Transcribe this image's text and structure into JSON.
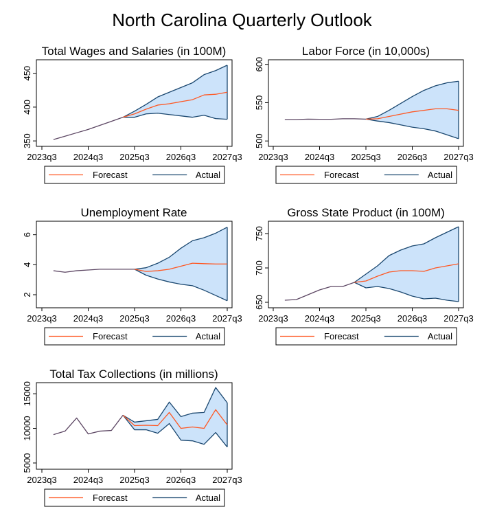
{
  "title": "North Carolina Quarterly Outlook",
  "colors": {
    "band_fill": "#cce3fa",
    "bound_line": "#1a476f",
    "forecast_line": "#ff5722",
    "history_line": "#5b4562"
  },
  "chart_data": [
    {
      "type": "area",
      "title": "Total Wages and Salaries (in 100M)",
      "xlabel": "",
      "ylabel": "",
      "x_ticks": [
        "2023q3",
        "2024q3",
        "2025q3",
        "2026q3",
        "2027q3"
      ],
      "xlim": [
        "2023q3",
        "2027q3"
      ],
      "ylim": [
        342,
        470
      ],
      "y_ticks": [
        350,
        400,
        450
      ],
      "legend": [
        "Forecast",
        "Actual"
      ],
      "history": {
        "x": [
          "2023q4",
          "2024q1",
          "2024q2",
          "2024q3",
          "2024q4",
          "2025q1",
          "2025q2"
        ],
        "y": [
          352,
          357,
          362,
          367,
          373,
          379,
          385
        ]
      },
      "forecast_x": [
        "2025q2",
        "2025q3",
        "2025q4",
        "2026q1",
        "2026q2",
        "2026q3",
        "2026q4",
        "2027q1",
        "2027q2",
        "2027q3"
      ],
      "forecast": [
        385,
        390,
        397,
        403,
        405,
        408,
        411,
        418,
        419,
        422
      ],
      "upper": [
        385,
        394,
        404,
        415,
        422,
        429,
        436,
        448,
        454,
        462
      ],
      "lower": [
        385,
        385,
        390,
        391,
        389,
        387,
        385,
        388,
        383,
        382
      ]
    },
    {
      "type": "area",
      "title": "Labor Force (in 10,000s)",
      "xlabel": "",
      "ylabel": "",
      "x_ticks": [
        "2023q3",
        "2024q3",
        "2025q3",
        "2026q3",
        "2027q3"
      ],
      "xlim": [
        "2023q3",
        "2027q3"
      ],
      "ylim": [
        493,
        606
      ],
      "y_ticks": [
        500,
        550,
        600
      ],
      "legend": [
        "Forecast",
        "Actual"
      ],
      "history": {
        "x": [
          "2023q4",
          "2024q1",
          "2024q2",
          "2024q3",
          "2024q4",
          "2025q1",
          "2025q2",
          "2025q3"
        ],
        "y": [
          528,
          528,
          528.5,
          528.3,
          528.3,
          529,
          529,
          528.5
        ]
      },
      "forecast_x": [
        "2025q3",
        "2025q4",
        "2026q1",
        "2026q2",
        "2026q3",
        "2026q4",
        "2027q1",
        "2027q2",
        "2027q3"
      ],
      "forecast": [
        528.5,
        529,
        532,
        535,
        538,
        540,
        542,
        542,
        540
      ],
      "upper": [
        528.5,
        532,
        540,
        549,
        558,
        566,
        572,
        576,
        578
      ],
      "lower": [
        528.5,
        526,
        524,
        521,
        518,
        516,
        513,
        508,
        503
      ]
    },
    {
      "type": "area",
      "title": "Unemployment Rate",
      "xlabel": "",
      "ylabel": "",
      "x_ticks": [
        "2023q3",
        "2024q3",
        "2025q3",
        "2026q3",
        "2027q3"
      ],
      "xlim": [
        "2023q3",
        "2027q3"
      ],
      "ylim": [
        1.13,
        6.9
      ],
      "y_ticks": [
        2,
        4,
        6
      ],
      "legend": [
        "Forecast",
        "Actual"
      ],
      "history": {
        "x": [
          "2023q4",
          "2024q1",
          "2024q2",
          "2024q3",
          "2024q4",
          "2025q1",
          "2025q2",
          "2025q3"
        ],
        "y": [
          3.6,
          3.5,
          3.6,
          3.65,
          3.7,
          3.7,
          3.7,
          3.7
        ]
      },
      "forecast_x": [
        "2025q3",
        "2025q4",
        "2026q1",
        "2026q2",
        "2026q3",
        "2026q4",
        "2027q1",
        "2027q2",
        "2027q3"
      ],
      "forecast": [
        3.7,
        3.55,
        3.6,
        3.7,
        3.9,
        4.1,
        4.07,
        4.05,
        4.05
      ],
      "upper": [
        3.7,
        3.8,
        4.1,
        4.5,
        5.1,
        5.6,
        5.8,
        6.1,
        6.5
      ],
      "lower": [
        3.7,
        3.3,
        3.05,
        2.85,
        2.7,
        2.6,
        2.3,
        1.95,
        1.6
      ]
    },
    {
      "type": "area",
      "title": "Gross State Product (in 100M)",
      "xlabel": "",
      "ylabel": "",
      "x_ticks": [
        "2023q3",
        "2024q3",
        "2025q3",
        "2026q3",
        "2027q3"
      ],
      "xlim": [
        "2023q3",
        "2027q3"
      ],
      "ylim": [
        642,
        768
      ],
      "y_ticks": [
        650,
        700,
        750
      ],
      "legend": [
        "Forecast",
        "Actual"
      ],
      "history": {
        "x": [
          "2023q4",
          "2024q1",
          "2024q2",
          "2024q3",
          "2024q4",
          "2025q1",
          "2025q2"
        ],
        "y": [
          653,
          654,
          661,
          668,
          673,
          673,
          679
        ]
      },
      "forecast_x": [
        "2025q2",
        "2025q3",
        "2025q4",
        "2026q1",
        "2026q2",
        "2026q3",
        "2026q4",
        "2027q1",
        "2027q2",
        "2027q3"
      ],
      "forecast": [
        679,
        681,
        688,
        694,
        696,
        696,
        695,
        700,
        703,
        706
      ],
      "upper": [
        679,
        691,
        703,
        718,
        726,
        732,
        735,
        744,
        752,
        760
      ],
      "lower": [
        679,
        671,
        673,
        670,
        665,
        659,
        655,
        656,
        653,
        651
      ]
    },
    {
      "type": "area",
      "title": "Total Tax Collections (in millions)",
      "xlabel": "",
      "ylabel": "",
      "x_ticks": [
        "2023q3",
        "2024q3",
        "2025q3",
        "2026q3",
        "2027q3"
      ],
      "xlim": [
        "2023q3",
        "2027q3"
      ],
      "ylim": [
        4100,
        16600
      ],
      "y_ticks": [
        5000,
        10000,
        15000
      ],
      "legend": [
        "Forecast",
        "Actual"
      ],
      "history": {
        "x": [
          "2023q4",
          "2024q1",
          "2024q2",
          "2024q3",
          "2024q4",
          "2025q1",
          "2025q2"
        ],
        "y": [
          9100,
          9600,
          11500,
          9200,
          9600,
          9700,
          11900
        ]
      },
      "forecast_x": [
        "2025q2",
        "2025q3",
        "2025q4",
        "2026q1",
        "2026q2",
        "2026q3",
        "2026q4",
        "2027q1",
        "2027q2",
        "2027q3"
      ],
      "forecast": [
        11900,
        10400,
        10450,
        10400,
        12300,
        10000,
        10200,
        10000,
        12700,
        10500
      ],
      "upper": [
        11900,
        10900,
        11100,
        11300,
        13800,
        11700,
        12200,
        12300,
        15900,
        13700
      ],
      "lower": [
        11900,
        9800,
        9800,
        9300,
        10700,
        8300,
        8200,
        7700,
        9400,
        7300
      ]
    }
  ]
}
